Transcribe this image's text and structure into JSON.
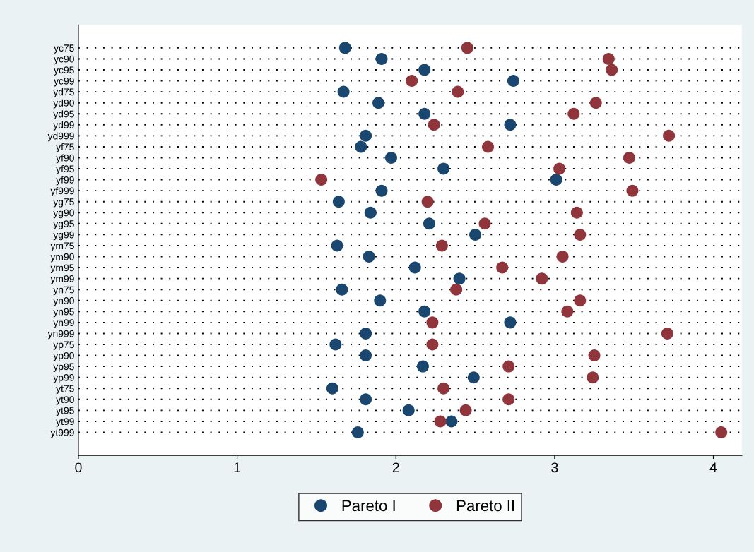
{
  "chart_data": {
    "type": "scatter",
    "orientation": "horizontal",
    "categories": [
      "yc75",
      "yc90",
      "yc95",
      "yc99",
      "yd75",
      "yd90",
      "yd95",
      "yd99",
      "yd999",
      "yf75",
      "yf90",
      "yf95",
      "yf99",
      "yf999",
      "yg75",
      "yg90",
      "yg95",
      "yg99",
      "ym75",
      "ym90",
      "ym95",
      "ym99",
      "yn75",
      "yn90",
      "yn95",
      "yn99",
      "yn999",
      "yp75",
      "yp90",
      "yp95",
      "yp99",
      "yt75",
      "yt90",
      "yt95",
      "yt99",
      "yt999"
    ],
    "series": [
      {
        "name": "Pareto I",
        "color": "#1a476f",
        "values": [
          1.68,
          1.91,
          2.18,
          2.74,
          1.67,
          1.89,
          2.18,
          2.72,
          1.81,
          1.78,
          1.97,
          2.3,
          3.01,
          1.91,
          1.64,
          1.84,
          2.21,
          2.5,
          1.63,
          1.83,
          2.12,
          2.4,
          1.66,
          1.9,
          2.18,
          2.72,
          1.81,
          1.62,
          1.81,
          2.17,
          2.49,
          1.6,
          1.81,
          2.08,
          2.35,
          1.76
        ]
      },
      {
        "name": "Pareto II",
        "color": "#90353b",
        "values": [
          2.45,
          3.34,
          3.36,
          2.1,
          2.39,
          3.26,
          3.12,
          2.24,
          3.72,
          2.58,
          3.47,
          3.03,
          1.53,
          3.49,
          2.2,
          3.14,
          2.56,
          3.16,
          2.29,
          3.05,
          2.67,
          2.92,
          2.38,
          3.16,
          3.08,
          2.23,
          3.71,
          2.23,
          3.25,
          2.71,
          3.24,
          2.3,
          2.71,
          2.44,
          2.28,
          4.05
        ]
      }
    ],
    "xlim": [
      0,
      4.18
    ],
    "xticks": [
      0,
      1,
      2,
      3,
      4
    ],
    "grid": "y",
    "line_style": "dotted",
    "marker": "circle",
    "legend": "bottom"
  }
}
